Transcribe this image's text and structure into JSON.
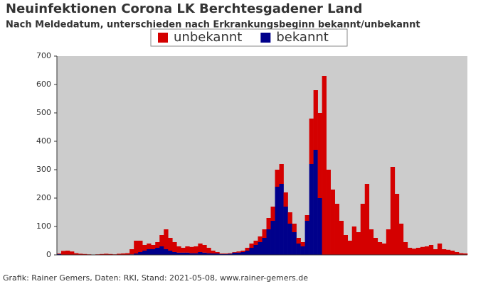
{
  "chart_data": {
    "type": "stacked_bar",
    "title": "Neuinfektionen Corona LK Berchtesgadener Land",
    "subtitle": "Nach Meldedatum, unterschieden nach Erkrankungsbeginn bekannt/unbekannt",
    "source": "Grafik: Rainer Gemers, Daten: RKI, Stand: 2021-05-08, www.rainer-gemers.de",
    "categories": [
      null,
      null,
      null,
      null,
      null,
      null,
      null,
      null,
      null,
      null,
      null,
      null,
      null,
      null,
      null,
      null,
      null,
      null,
      null,
      null,
      null,
      null,
      null,
      null,
      null,
      null,
      null,
      null,
      null,
      null,
      null,
      null,
      null,
      null,
      null,
      null,
      null,
      null,
      null,
      null,
      null,
      null,
      null,
      null,
      null,
      null,
      null,
      null,
      null,
      null,
      null,
      null,
      null,
      null,
      null,
      null,
      null,
      null,
      null,
      null,
      null,
      null,
      null,
      null,
      null,
      null,
      null,
      null,
      null,
      null,
      null,
      null,
      null,
      null,
      null,
      null,
      null,
      null,
      null,
      null,
      null,
      null,
      null,
      null,
      null,
      null,
      null,
      null,
      null,
      null,
      null,
      null,
      null,
      null,
      null,
      null
    ],
    "series": [
      {
        "name": "bekannt",
        "color": "#00008b",
        "values": [
          3,
          0,
          0,
          0,
          0,
          0,
          0,
          0,
          0,
          0,
          0,
          0,
          0,
          0,
          0,
          0,
          0,
          2,
          5,
          10,
          15,
          20,
          20,
          25,
          30,
          20,
          15,
          10,
          8,
          8,
          8,
          6,
          6,
          10,
          8,
          6,
          5,
          5,
          3,
          3,
          4,
          8,
          8,
          10,
          15,
          25,
          35,
          45,
          60,
          90,
          120,
          240,
          250,
          170,
          110,
          80,
          40,
          30,
          120,
          320,
          370,
          200,
          0,
          0,
          0,
          0,
          0,
          0,
          0,
          0,
          0,
          0,
          0,
          0,
          0,
          0,
          0,
          0,
          0,
          0,
          0,
          0,
          0,
          0,
          0,
          0,
          0,
          0,
          0,
          0,
          0,
          0,
          0,
          0,
          0,
          0
        ]
      },
      {
        "name": "unbekannt",
        "color": "#d40000",
        "values": [
          2,
          14,
          15,
          12,
          6,
          4,
          3,
          2,
          1,
          2,
          3,
          4,
          3,
          2,
          4,
          5,
          6,
          18,
          45,
          40,
          20,
          20,
          15,
          20,
          40,
          70,
          45,
          35,
          22,
          17,
          22,
          22,
          24,
          30,
          27,
          19,
          10,
          5,
          2,
          2,
          2,
          2,
          4,
          5,
          10,
          15,
          15,
          20,
          30,
          40,
          50,
          60,
          70,
          50,
          40,
          30,
          20,
          15,
          20,
          160,
          210,
          300,
          630,
          300,
          230,
          180,
          120,
          70,
          50,
          100,
          80,
          180,
          250,
          90,
          60,
          45,
          40,
          90,
          310,
          215,
          110,
          45,
          25,
          22,
          25,
          28,
          30,
          35,
          20,
          40,
          20,
          18,
          15,
          10,
          6,
          5
        ]
      }
    ],
    "legend_order": [
      1,
      0
    ],
    "ylim": [
      0,
      700
    ],
    "yticks": [
      0,
      100,
      200,
      300,
      400,
      500,
      600,
      700
    ],
    "plot_background": "#cccccc"
  }
}
